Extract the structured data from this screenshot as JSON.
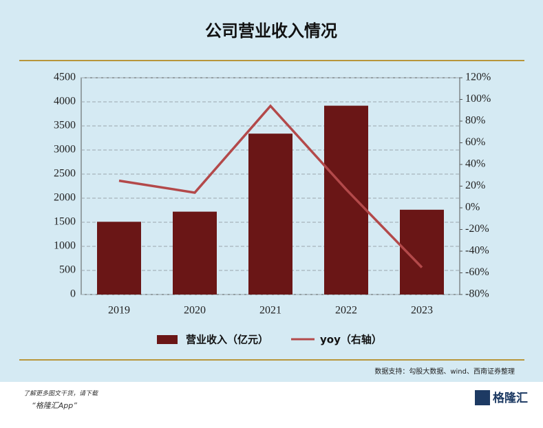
{
  "chart_data": {
    "type": "bar_line",
    "title": "公司营业收入情况",
    "categories": [
      "2019",
      "2020",
      "2021",
      "2022",
      "2023"
    ],
    "series": [
      {
        "name": "营业收入（亿元）",
        "color": "#6a1616",
        "type": "bar",
        "values": [
          1510,
          1720,
          3340,
          3920,
          1760
        ]
      },
      {
        "name": "yoy（右轴）",
        "color": "#b3494a",
        "type": "line",
        "axis": "y2",
        "values": [
          25,
          14,
          94,
          17,
          -55
        ]
      }
    ],
    "ylim": [
      0,
      4500
    ],
    "yticks": [
      0,
      500,
      1000,
      1500,
      2000,
      2500,
      3000,
      3500,
      4000,
      4500
    ],
    "y2lim": [
      -80,
      120
    ],
    "y2ticks": [
      {
        "value": -80,
        "label": "-80%"
      },
      {
        "value": -60,
        "label": "-60%"
      },
      {
        "value": -40,
        "label": "-40%"
      },
      {
        "value": -20,
        "label": "-20%"
      },
      {
        "value": 0,
        "label": "0%"
      },
      {
        "value": 20,
        "label": "20%"
      },
      {
        "value": 40,
        "label": "40%"
      },
      {
        "value": 60,
        "label": "60%"
      },
      {
        "value": 80,
        "label": "80%"
      },
      {
        "value": 100,
        "label": "100%"
      },
      {
        "value": 120,
        "label": "120%"
      }
    ],
    "grid": true,
    "legend": "bottom",
    "source": "数据支持：勾股大数据、wind、西南证券整理"
  },
  "footer": {
    "note": "了解更多图文干货，请下载",
    "app": "“格隆汇App”",
    "logo": "格隆汇"
  }
}
